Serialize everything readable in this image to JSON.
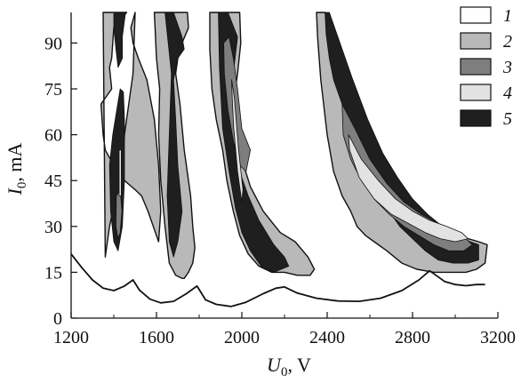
{
  "chart_data": {
    "type": "area",
    "title": "",
    "xlabel": {
      "main": "U",
      "sub": "0",
      "unit": ", V"
    },
    "ylabel": {
      "main": "I",
      "sub": "0",
      "unit": ", mA"
    },
    "xlim": [
      1200,
      3200
    ],
    "ylim": [
      0,
      100
    ],
    "x_ticks": [
      1200,
      1600,
      2000,
      2400,
      2800,
      3200
    ],
    "y_ticks": [
      0,
      15,
      30,
      45,
      60,
      75,
      90
    ],
    "grid": false,
    "legend_position": "top-right",
    "legend": [
      {
        "label": "1",
        "color": "#ffffff"
      },
      {
        "label": "2",
        "color": "#b9b9b9"
      },
      {
        "label": "3",
        "color": "#7e7e7e"
      },
      {
        "label": "4",
        "color": "#e2e2e2"
      },
      {
        "label": "5",
        "color": "#1f1f1f"
      }
    ],
    "threshold_curve": {
      "x": [
        1200,
        1250,
        1300,
        1350,
        1400,
        1450,
        1490,
        1520,
        1570,
        1620,
        1680,
        1740,
        1790,
        1830,
        1880,
        1950,
        2020,
        2100,
        2160,
        2200,
        2260,
        2350,
        2450,
        2550,
        2650,
        2750,
        2830,
        2880,
        2910,
        2950,
        3000,
        3050,
        3100,
        3140
      ],
      "y": [
        21,
        16.5,
        12.5,
        9.8,
        9.0,
        10.5,
        12.5,
        9.2,
        6.2,
        5.0,
        5.5,
        8.0,
        10.5,
        6.0,
        4.5,
        3.8,
        5.2,
        8.0,
        9.8,
        10.2,
        8.2,
        6.5,
        5.6,
        5.5,
        6.5,
        9.0,
        12.5,
        15.5,
        14.0,
        12.0,
        11.0,
        10.6,
        11.0,
        11.0
      ]
    },
    "regions": [
      {
        "id": "A",
        "layers": [
          {
            "level": "2",
            "x": [
              1350,
              1410,
              1460,
              1400,
              1390,
              1380,
              1390,
              1340,
              1350,
              1360,
              1400,
              1450,
              1500,
              1530,
              1560,
              1585,
              1610,
              1620,
              1610,
              1590,
              1555,
              1515,
              1490,
              1480,
              1500,
              1490,
              1470,
              1450,
              1440,
              1410,
              1380,
              1360
            ],
            "y": [
              100,
              100,
              100,
              95,
              85,
              82,
              75,
              70,
              60,
              55,
              50,
              45,
              42,
              40,
              35,
              30,
              25,
              35,
              50,
              65,
              78,
              85,
              90,
              95,
              100,
              80,
              70,
              60,
              50,
              40,
              30,
              20
            ]
          },
          {
            "level": "5",
            "x": [
              1400,
              1430,
              1455,
              1440,
              1440,
              1420,
              1410,
              1400
            ],
            "y": [
              100,
              100,
              100,
              92,
              85,
              82,
              88,
              95
            ]
          },
          {
            "level": "5",
            "x": [
              1395,
              1430,
              1445,
              1450,
              1450,
              1440,
              1420,
              1400,
              1385,
              1380
            ],
            "y": [
              60,
              75,
              74,
              65,
              45,
              30,
              22,
              25,
              35,
              50
            ]
          },
          {
            "level": "3",
            "x": [
              1412,
              1430,
              1438,
              1430,
              1420,
              1410
            ],
            "y": [
              40,
              42,
              35,
              28,
              26,
              30
            ]
          },
          {
            "level": "4",
            "x": [
              1425,
              1435,
              1435,
              1425
            ],
            "y": [
              55,
              55,
              40,
              40
            ]
          }
        ]
      },
      {
        "id": "B",
        "layers": [
          {
            "level": "2",
            "x": [
              1590,
              1670,
              1745,
              1750,
              1720,
              1700,
              1690,
              1710,
              1730,
              1760,
              1770,
              1780,
              1770,
              1750,
              1730,
              1720,
              1690,
              1660,
              1640,
              1620,
              1610,
              1615,
              1600
            ],
            "y": [
              100,
              100,
              100,
              95,
              90,
              85,
              80,
              70,
              55,
              40,
              30,
              23,
              18,
              15,
              13,
              13,
              14,
              18,
              30,
              45,
              60,
              75,
              85
            ]
          },
          {
            "level": "5",
            "x": [
              1640,
              1680,
              1720,
              1730,
              1700,
              1680,
              1690,
              1700,
              1720,
              1700,
              1680,
              1660,
              1650,
              1660,
              1670
            ],
            "y": [
              100,
              100,
              92,
              88,
              85,
              78,
              65,
              50,
              35,
              25,
              20,
              25,
              40,
              60,
              80
            ]
          }
        ]
      },
      {
        "id": "C",
        "layers": [
          {
            "level": "2",
            "x": [
              1850,
              1990,
              1995,
              1980,
              1960,
              1970,
              2000,
              2040,
              2100,
              2180,
              2250,
              2310,
              2340,
              2320,
              2260,
              2200,
              2140,
              2080,
              2030,
              1990,
              1960,
              1930,
              1910,
              1880,
              1860,
              1850
            ],
            "y": [
              100,
              100,
              90,
              80,
              70,
              62,
              52,
              43,
              35,
              28,
              25,
              20,
              16,
              14,
              14,
              15,
              15,
              17,
              21,
              27,
              35,
              45,
              55,
              65,
              75,
              88
            ]
          },
          {
            "level": "5",
            "x": [
              1890,
              1935,
              1980,
              1960,
              1950,
              1960,
              1990,
              2030,
              2080,
              2150,
              2200,
              2220,
              2150,
              2090,
              2040,
              2000,
              1970,
              1940,
              1910,
              1895
            ],
            "y": [
              100,
              100,
              92,
              80,
              68,
              58,
              48,
              40,
              32,
              24,
              20,
              17,
              15,
              17,
              22,
              28,
              36,
              48,
              62,
              82
            ]
          },
          {
            "level": "3",
            "x": [
              1915,
              1940,
              1960,
              1980,
              2000,
              2040,
              2020,
              1990,
              1960,
              1935,
              1918
            ],
            "y": [
              90,
              92,
              85,
              75,
              62,
              55,
              48,
              50,
              58,
              68,
              80
            ]
          },
          {
            "level": "4",
            "x": [
              1952,
              1965,
              1985,
              2005,
              2000,
              1980,
              1962,
              1955
            ],
            "y": [
              78,
              72,
              55,
              42,
              38,
              48,
              62,
              72
            ]
          }
        ]
      },
      {
        "id": "D",
        "layers": [
          {
            "level": "2",
            "x": [
              2350,
              2390,
              2410,
              2450,
              2510,
              2580,
              2650,
              2720,
              2780,
              2840,
              2900,
              2960,
              3020,
              3060,
              3110,
              3150,
              3140,
              3100,
              3050,
              2980,
              2900,
              2820,
              2750,
              2680,
              2620,
              2580,
              2540,
              2510,
              2470,
              2430,
              2400,
              2370,
              2355
            ],
            "y": [
              100,
              100,
              95,
              85,
              72,
              60,
              50,
              42,
              36,
              32,
              30,
              28,
              27,
              26,
              25,
              24,
              18,
              16,
              15,
              15,
              15,
              16,
              18,
              22,
              25,
              27,
              30,
              35,
              40,
              48,
              60,
              78,
              92
            ]
          },
          {
            "level": "5",
            "x": [
              2390,
              2410,
              2460,
              2520,
              2590,
              2660,
              2730,
              2800,
              2870,
              2940,
              3010,
              3070,
              3110,
              3110,
              3060,
              2990,
              2920,
              2860,
              2800,
              2740,
              2680,
              2630,
              2590,
              2550,
              2520,
              2490,
              2460,
              2430,
              2410,
              2395
            ],
            "y": [
              100,
              100,
              90,
              78,
              65,
              54,
              46,
              39,
              34,
              30,
              27,
              25,
              24,
              19,
              18,
              18,
              19,
              22,
              26,
              30,
              36,
              42,
              48,
              54,
              60,
              66,
              72,
              78,
              85,
              93
            ]
          },
          {
            "level": "3",
            "x": [
              2470,
              2530,
              2600,
              2680,
              2760,
              2840,
              2920,
              2990,
              3050,
              3080,
              3040,
              2970,
              2900,
              2830,
              2760,
              2690,
              2620,
              2560,
              2510,
              2475
            ],
            "y": [
              70,
              62,
              52,
              44,
              38,
              34,
              31,
              28,
              26,
              24,
              22,
              22,
              24,
              27,
              30,
              34,
              39,
              45,
              52,
              60
            ]
          },
          {
            "level": "4",
            "x": [
              2500,
              2560,
              2640,
              2720,
              2800,
              2880,
              2960,
              3030,
              3060,
              3000,
              2930,
              2860,
              2780,
              2700,
              2620,
              2550,
              2505
            ],
            "y": [
              60,
              52,
              45,
              39,
              35,
              32,
              30,
              28,
              26,
              25,
              26,
              28,
              31,
              34,
              39,
              46,
              55
            ]
          }
        ]
      }
    ]
  }
}
